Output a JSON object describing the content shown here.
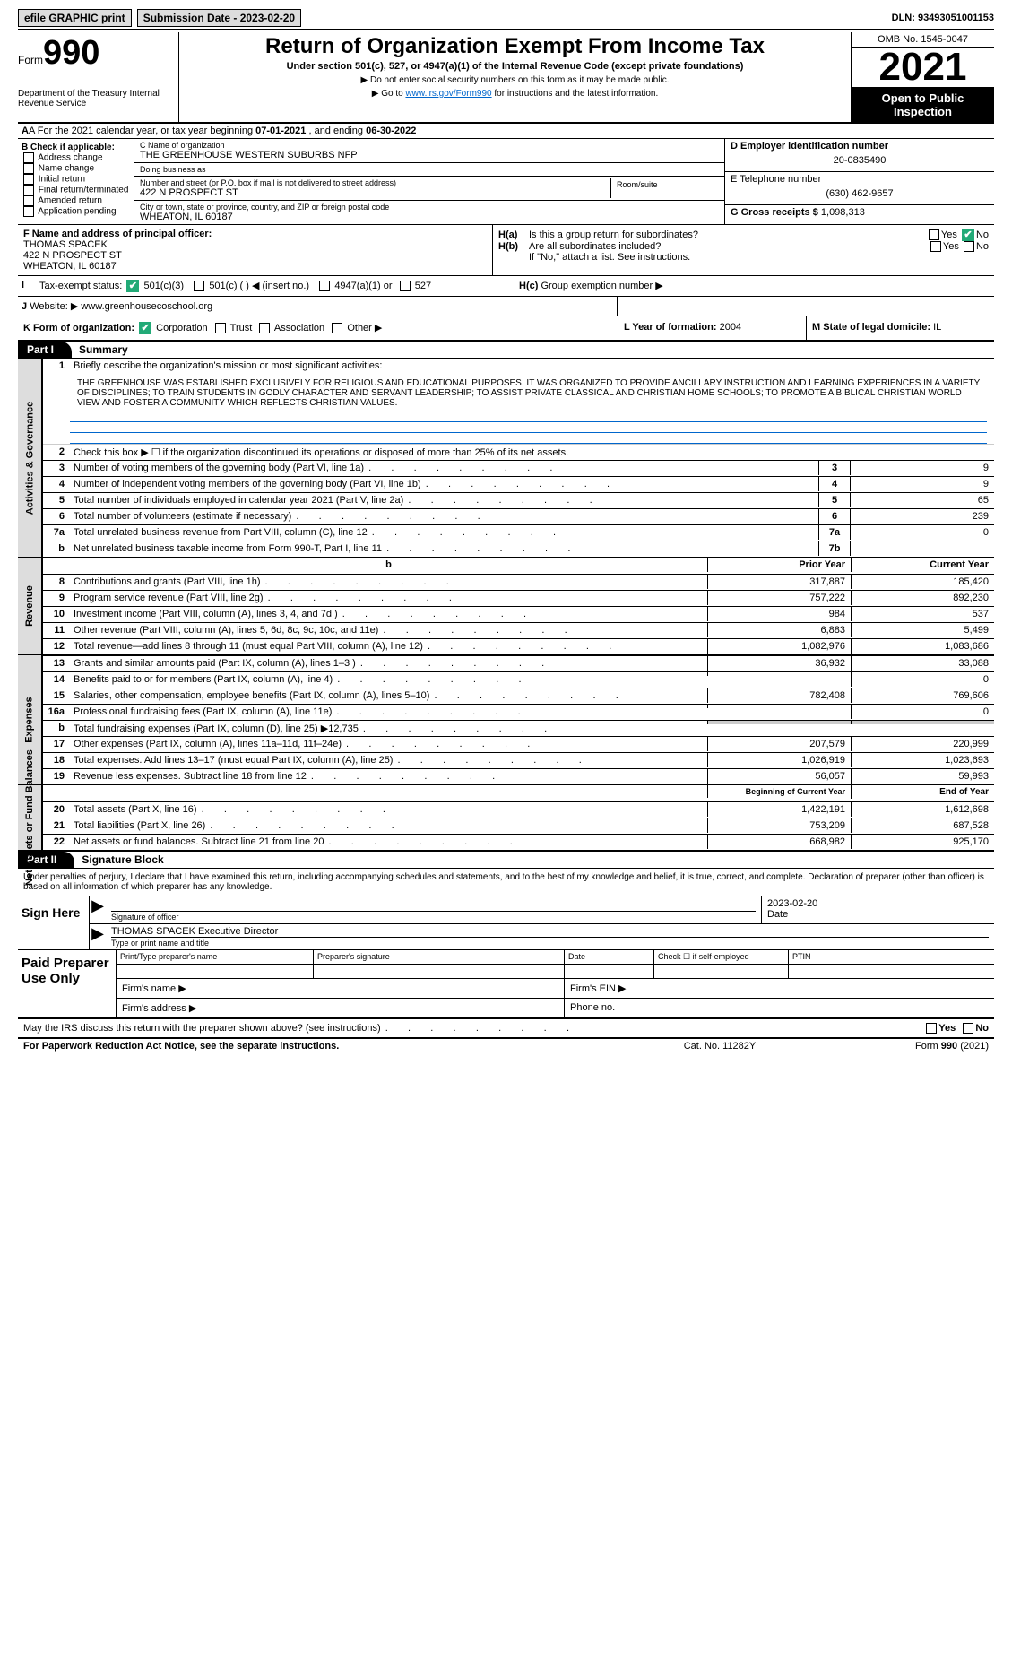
{
  "topbar": {
    "efile_label": "efile GRAPHIC print",
    "submission_label": "Submission Date - 2023-02-20",
    "dln": "DLN: 93493051001153"
  },
  "header": {
    "form_prefix": "Form",
    "form_no": "990",
    "title": "Return of Organization Exempt From Income Tax",
    "subtitle": "Under section 501(c), 527, or 4947(a)(1) of the Internal Revenue Code (except private foundations)",
    "note1": "▶ Do not enter social security numbers on this form as it may be made public.",
    "note2_pre": "▶ Go to ",
    "note2_link": "www.irs.gov/Form990",
    "note2_post": " for instructions and the latest information.",
    "dept": "Department of the Treasury\nInternal Revenue Service",
    "omb": "OMB No. 1545-0047",
    "year": "2021",
    "open_pub": "Open to Public Inspection"
  },
  "rowA": {
    "text_pre": "A For the 2021 calendar year, or tax year beginning ",
    "begin": "07-01-2021",
    "mid": " , and ending ",
    "end": "06-30-2022"
  },
  "colB": {
    "label": "B Check if applicable:",
    "items": [
      "Address change",
      "Name change",
      "Initial return",
      "Final return/terminated",
      "Amended return",
      "Application pending"
    ]
  },
  "colC": {
    "name_label": "C Name of organization",
    "name": "THE GREENHOUSE WESTERN SUBURBS NFP",
    "dba_label": "Doing business as",
    "dba": "",
    "addr_label": "Number and street (or P.O. box if mail is not delivered to street address)",
    "addr": "422 N PROSPECT ST",
    "room_label": "Room/suite",
    "room": "",
    "city_label": "City or town, state or province, country, and ZIP or foreign postal code",
    "city": "WHEATON, IL  60187"
  },
  "colD": {
    "ein_label": "D Employer identification number",
    "ein": "20-0835490",
    "tel_label": "E Telephone number",
    "tel": "(630) 462-9657",
    "gross_label": "G Gross receipts $",
    "gross": "1,098,313"
  },
  "colF": {
    "label": "F  Name and address of principal officer:",
    "name": "THOMAS SPACEK",
    "addr": "422 N PROSPECT ST",
    "city": "WHEATON, IL  60187"
  },
  "colH": {
    "ha_label": "H(a)",
    "ha_text": "Is this a group return for subordinates?",
    "hb_label": "H(b)",
    "hb_text": "Are all subordinates included?",
    "hb_note": "If \"No,\" attach a list. See instructions.",
    "hc_label": "H(c)",
    "hc_text": "Group exemption number ▶",
    "yes": "Yes",
    "no": "No"
  },
  "rowI": {
    "label": "I",
    "text": "Tax-exempt status:",
    "opt1": "501(c)(3)",
    "opt2": "501(c) (   ) ◀ (insert no.)",
    "opt3": "4947(a)(1) or",
    "opt4": "527"
  },
  "rowJ": {
    "label": "J",
    "text": "Website: ▶",
    "url": "www.greenhousecoschool.org"
  },
  "rowK": {
    "label": "K Form of organization:",
    "opts": [
      "Corporation",
      "Trust",
      "Association",
      "Other ▶"
    ],
    "checked": 0
  },
  "rowL": {
    "label": "L Year of formation:",
    "val": "2004"
  },
  "rowM": {
    "label": "M State of legal domicile:",
    "val": "IL"
  },
  "parts": {
    "p1": "Part I",
    "p1t": "Summary",
    "p2": "Part II",
    "p2t": "Signature Block"
  },
  "vtabs": {
    "ag": "Activities & Governance",
    "rev": "Revenue",
    "exp": "Expenses",
    "nab": "Net Assets or\nFund Balances"
  },
  "summary": {
    "l1_label": "Briefly describe the organization's mission or most significant activities:",
    "mission": "THE GREENHOUSE WAS ESTABLISHED EXCLUSIVELY FOR RELIGIOUS AND EDUCATIONAL PURPOSES. IT WAS ORGANIZED TO PROVIDE ANCILLARY INSTRUCTION AND LEARNING EXPERIENCES IN A VARIETY OF DISCIPLINES; TO TRAIN STUDENTS IN GODLY CHARACTER AND SERVANT LEADERSHIP; TO ASSIST PRIVATE CLASSICAL AND CHRISTIAN HOME SCHOOLS; TO PROMOTE A BIBLICAL CHRISTIAN WORLD VIEW AND FOSTER A COMMUNITY WHICH REFLECTS CHRISTIAN VALUES.",
    "l2": "Check this box ▶ ☐  if the organization discontinued its operations or disposed of more than 25% of its net assets.",
    "lines": [
      {
        "n": "3",
        "d": "Number of voting members of the governing body (Part VI, line 1a)",
        "box": "3",
        "v": "9"
      },
      {
        "n": "4",
        "d": "Number of independent voting members of the governing body (Part VI, line 1b)",
        "box": "4",
        "v": "9"
      },
      {
        "n": "5",
        "d": "Total number of individuals employed in calendar year 2021 (Part V, line 2a)",
        "box": "5",
        "v": "65"
      },
      {
        "n": "6",
        "d": "Total number of volunteers (estimate if necessary)",
        "box": "6",
        "v": "239"
      },
      {
        "n": "7a",
        "d": "Total unrelated business revenue from Part VIII, column (C), line 12",
        "box": "7a",
        "v": "0"
      },
      {
        "n": "b",
        "d": "Net unrelated business taxable income from Form 990-T, Part I, line 11",
        "box": "7b",
        "v": ""
      }
    ],
    "colhdr": {
      "prior": "Prior Year",
      "current": "Current Year"
    },
    "rev": [
      {
        "n": "8",
        "d": "Contributions and grants (Part VIII, line 1h)",
        "p": "317,887",
        "c": "185,420"
      },
      {
        "n": "9",
        "d": "Program service revenue (Part VIII, line 2g)",
        "p": "757,222",
        "c": "892,230"
      },
      {
        "n": "10",
        "d": "Investment income (Part VIII, column (A), lines 3, 4, and 7d )",
        "p": "984",
        "c": "537"
      },
      {
        "n": "11",
        "d": "Other revenue (Part VIII, column (A), lines 5, 6d, 8c, 9c, 10c, and 11e)",
        "p": "6,883",
        "c": "5,499"
      },
      {
        "n": "12",
        "d": "Total revenue—add lines 8 through 11 (must equal Part VIII, column (A), line 12)",
        "p": "1,082,976",
        "c": "1,083,686"
      }
    ],
    "exp": [
      {
        "n": "13",
        "d": "Grants and similar amounts paid (Part IX, column (A), lines 1–3 )",
        "p": "36,932",
        "c": "33,088"
      },
      {
        "n": "14",
        "d": "Benefits paid to or for members (Part IX, column (A), line 4)",
        "p": "",
        "c": "0"
      },
      {
        "n": "15",
        "d": "Salaries, other compensation, employee benefits (Part IX, column (A), lines 5–10)",
        "p": "782,408",
        "c": "769,606"
      },
      {
        "n": "16a",
        "d": "Professional fundraising fees (Part IX, column (A), line 11e)",
        "p": "",
        "c": "0"
      },
      {
        "n": "b",
        "d": "Total fundraising expenses (Part IX, column (D), line 25) ▶12,735",
        "p": "SHADE",
        "c": "SHADE"
      },
      {
        "n": "17",
        "d": "Other expenses (Part IX, column (A), lines 11a–11d, 11f–24e)",
        "p": "207,579",
        "c": "220,999"
      },
      {
        "n": "18",
        "d": "Total expenses. Add lines 13–17 (must equal Part IX, column (A), line 25)",
        "p": "1,026,919",
        "c": "1,023,693"
      },
      {
        "n": "19",
        "d": "Revenue less expenses. Subtract line 18 from line 12",
        "p": "56,057",
        "c": "59,993"
      }
    ],
    "nabhdr": {
      "begin": "Beginning of Current Year",
      "end": "End of Year"
    },
    "nab": [
      {
        "n": "20",
        "d": "Total assets (Part X, line 16)",
        "p": "1,422,191",
        "c": "1,612,698"
      },
      {
        "n": "21",
        "d": "Total liabilities (Part X, line 26)",
        "p": "753,209",
        "c": "687,528"
      },
      {
        "n": "22",
        "d": "Net assets or fund balances. Subtract line 21 from line 20",
        "p": "668,982",
        "c": "925,170"
      }
    ]
  },
  "sig": {
    "intro": "Under penalties of perjury, I declare that I have examined this return, including accompanying schedules and statements, and to the best of my knowledge and belief, it is true, correct, and complete. Declaration of preparer (other than officer) is based on all information of which preparer has any knowledge.",
    "sign_here": "Sign Here",
    "sig_officer": "Signature of officer",
    "date_label": "Date",
    "date": "2023-02-20",
    "name_title": "THOMAS SPACEK  Executive Director",
    "name_title_label": "Type or print name and title",
    "paid": "Paid Preparer Use Only",
    "h1": "Print/Type preparer's name",
    "h2": "Preparer's signature",
    "h3": "Date",
    "h4": "Check ☐ if self-employed",
    "h5": "PTIN",
    "firm_name": "Firm's name   ▶",
    "firm_ein": "Firm's EIN ▶",
    "firm_addr": "Firm's address ▶",
    "phone": "Phone no.",
    "discuss": "May the IRS discuss this return with the preparer shown above? (see instructions)"
  },
  "footer": {
    "pra": "For Paperwork Reduction Act Notice, see the separate instructions.",
    "cat": "Cat. No. 11282Y",
    "form": "Form 990 (2021)"
  }
}
